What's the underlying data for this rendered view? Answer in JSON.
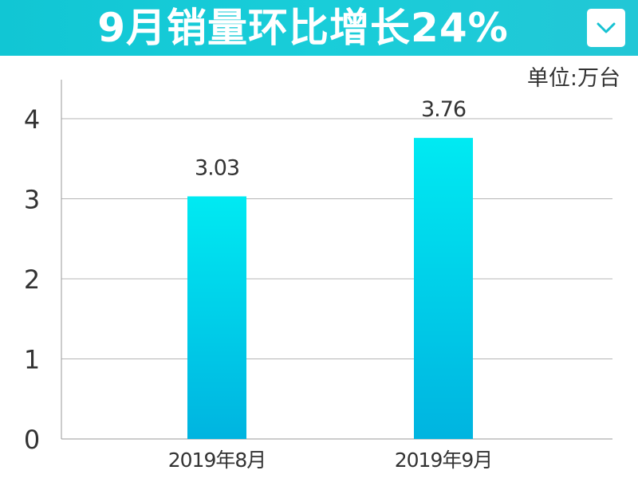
{
  "header": {
    "title": "9月销量环比增长24%",
    "menu_icon": "chevron-down-icon"
  },
  "unit_label": "单位:万台",
  "colors": {
    "banner": "#17cad7",
    "bar_top": "#00eaf2",
    "bar_bottom": "#00b4e0",
    "grid": "#b5b5b5",
    "text": "#333333"
  },
  "chart_data": {
    "type": "bar",
    "title": "9月销量环比增长24%",
    "xlabel": "",
    "ylabel": "",
    "unit": "单位:万台",
    "categories": [
      "2019年8月",
      "2019年9月"
    ],
    "values": [
      3.03,
      3.76
    ],
    "data_labels": [
      "3.03",
      "3.76"
    ],
    "ylim": [
      0,
      4.5
    ],
    "yticks": [
      0,
      1,
      2,
      3,
      4
    ],
    "ytick_labels": [
      "0",
      "1",
      "2",
      "3",
      "4"
    ],
    "grid": true,
    "legend": "none"
  }
}
